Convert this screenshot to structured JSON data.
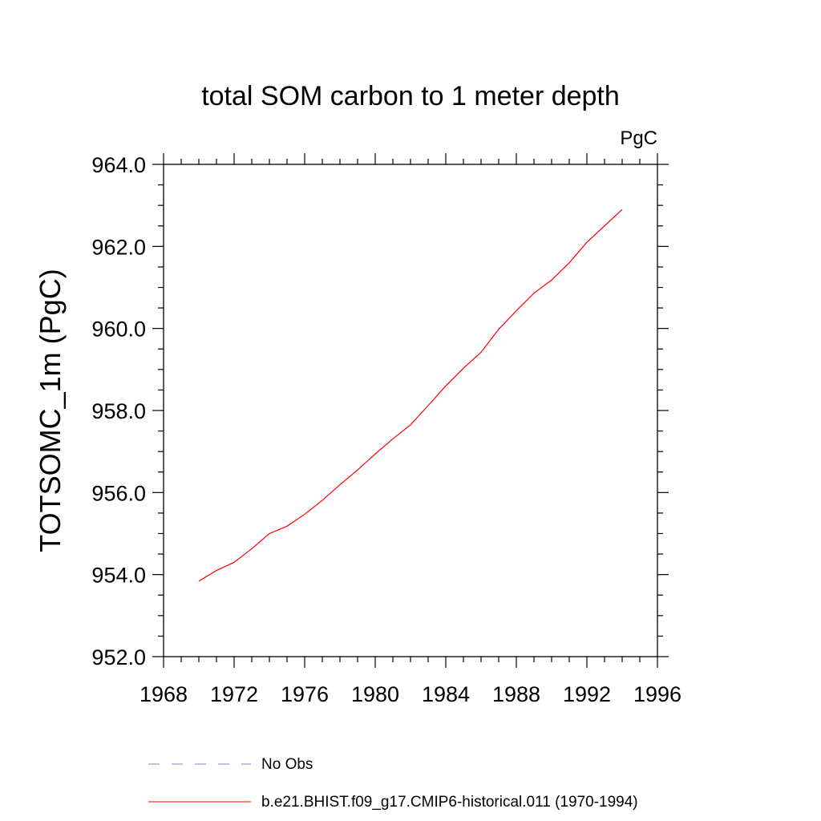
{
  "chart_data": {
    "type": "line",
    "title": "total SOM carbon to 1 meter depth",
    "units": "PgC",
    "xlabel": "",
    "ylabel": "TOTSOMC_1m  (PgC)",
    "xlim": [
      1968,
      1996
    ],
    "ylim": [
      952.0,
      964.0
    ],
    "x_ticks": [
      1968,
      1972,
      1976,
      1980,
      1984,
      1988,
      1992,
      1996
    ],
    "y_ticks": [
      952.0,
      954.0,
      956.0,
      958.0,
      960.0,
      962.0,
      964.0
    ],
    "x_tick_labels": [
      "1968",
      "1972",
      "1976",
      "1980",
      "1984",
      "1988",
      "1992",
      "1996"
    ],
    "y_tick_labels": [
      "952.0",
      "954.0",
      "956.0",
      "958.0",
      "960.0",
      "962.0",
      "964.0"
    ],
    "grid": false,
    "legend_position": "bottom",
    "series": [
      {
        "name": "No Obs",
        "color": "#8080c8",
        "dash": "dashed",
        "x": [],
        "values": []
      },
      {
        "name": "b.e21.BHIST.f09_g17.CMIP6-historical.011 (1970-1994)",
        "color": "#ff0000",
        "dash": "solid",
        "x": [
          1970,
          1971,
          1972,
          1973,
          1974,
          1975,
          1976,
          1977,
          1978,
          1979,
          1980,
          1981,
          1982,
          1983,
          1984,
          1985,
          1986,
          1987,
          1988,
          1989,
          1990,
          1991,
          1992,
          1993,
          1994
        ],
        "values": [
          953.84,
          954.1,
          954.3,
          954.63,
          955.0,
          955.18,
          955.47,
          955.81,
          956.19,
          956.55,
          956.94,
          957.31,
          957.65,
          958.12,
          958.6,
          959.03,
          959.42,
          959.98,
          960.43,
          960.86,
          961.18,
          961.6,
          962.1,
          962.5,
          962.9
        ]
      }
    ]
  }
}
